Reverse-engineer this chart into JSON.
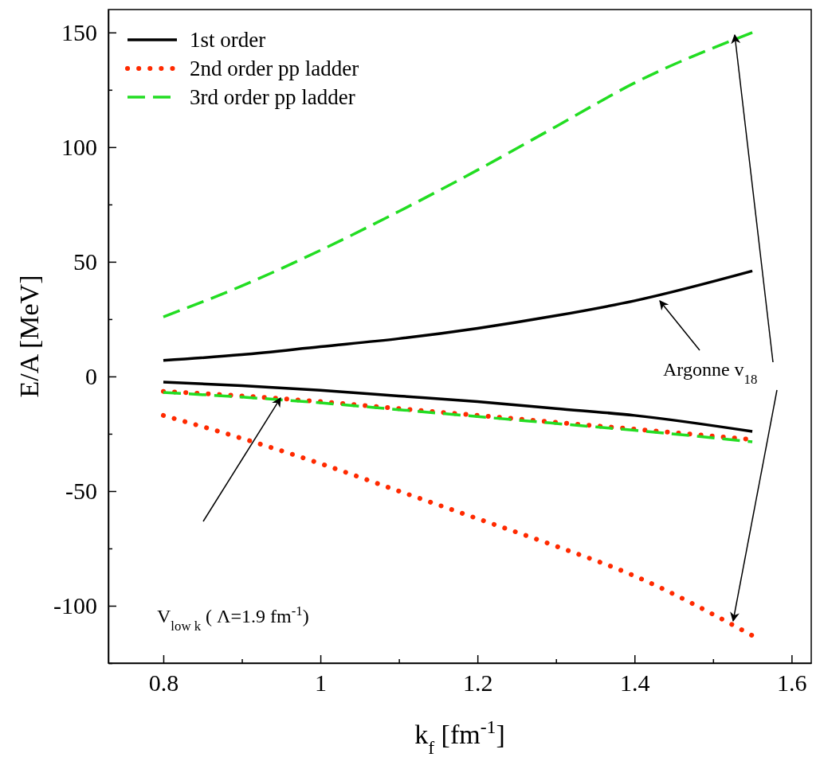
{
  "chart_data": {
    "type": "line",
    "xlabel": "k$_{f}$ [fm$^{-1}$]",
    "ylabel": "E/A [MeV]",
    "x": [
      0.8,
      0.9,
      1.0,
      1.1,
      1.2,
      1.3,
      1.4,
      1.55
    ],
    "xlim": [
      0.73,
      1.625
    ],
    "ylim": [
      -125,
      160
    ],
    "xticks": [
      0.8,
      {
        "value": 0.9,
        "label": null
      },
      1,
      {
        "value": 1.1,
        "label": null
      },
      1.2,
      {
        "value": 1.3,
        "label": null
      },
      1.4,
      {
        "value": 1.5,
        "label": null
      },
      1.6
    ],
    "yticks": [
      {
        "value": -125,
        "label": null
      },
      -100,
      {
        "value": -75,
        "label": null
      },
      -50,
      {
        "value": -25,
        "label": null
      },
      0,
      {
        "value": 25,
        "label": null
      },
      50,
      {
        "value": 75,
        "label": null
      },
      100,
      {
        "value": 125,
        "label": null
      },
      150
    ],
    "legend": "top left",
    "grid": false,
    "marker": "none",
    "series": [
      {
        "name": "1st order",
        "color": "#000000",
        "line_style": "solid",
        "values": [
          7,
          9.5,
          13,
          16.5,
          21,
          26.5,
          33,
          46
        ]
      },
      {
        "name": "2nd order pp ladder",
        "color": "#ff2a00",
        "line_style": "dotted",
        "values": [
          -17,
          -27,
          -38,
          -50,
          -62,
          -74,
          -87,
          -113
        ]
      },
      {
        "name": "3rd order pp ladder",
        "color": "#22dd22",
        "line_style": "dashed",
        "values": [
          26,
          39.5,
          55,
          72,
          90,
          109,
          128,
          150
        ]
      },
      {
        "color": "#000000",
        "line_style": "solid",
        "values": [
          -2.5,
          -4,
          -6,
          -8.5,
          -11,
          -14,
          -17,
          -24
        ]
      },
      {
        "color": "#ff2a00",
        "line_style": "dotted",
        "values": [
          -6.5,
          -8.5,
          -11,
          -14,
          -17,
          -20,
          -23,
          -27.5
        ]
      },
      {
        "color": "#22dd22",
        "line_style": "dashed",
        "values": [
          -7,
          -9,
          -11.5,
          -14.5,
          -17.5,
          -20.5,
          -23.5,
          -28.5
        ]
      }
    ],
    "annotations": [
      "Argonne v$_{18}$",
      "V$_{low k}$ ( Λ=1.9 fm$^{-1}$)"
    ]
  }
}
